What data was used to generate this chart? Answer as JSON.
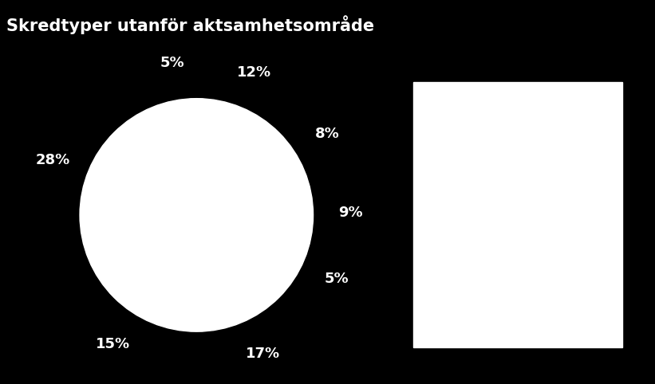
{
  "title": "Skredtyper utanför aktsamhetsområde",
  "background_color": "#000000",
  "pie_color": "#ffffff",
  "text_color": "#ffffff",
  "slices": [
    12,
    8,
    9,
    5,
    17,
    15,
    28,
    5
  ],
  "labels": [
    "12%",
    "8%",
    "9%",
    "5%",
    "17%",
    "15%",
    "28%",
    "5%"
  ],
  "legend_box_color": "#ffffff",
  "title_fontsize": 15,
  "label_fontsize": 13
}
